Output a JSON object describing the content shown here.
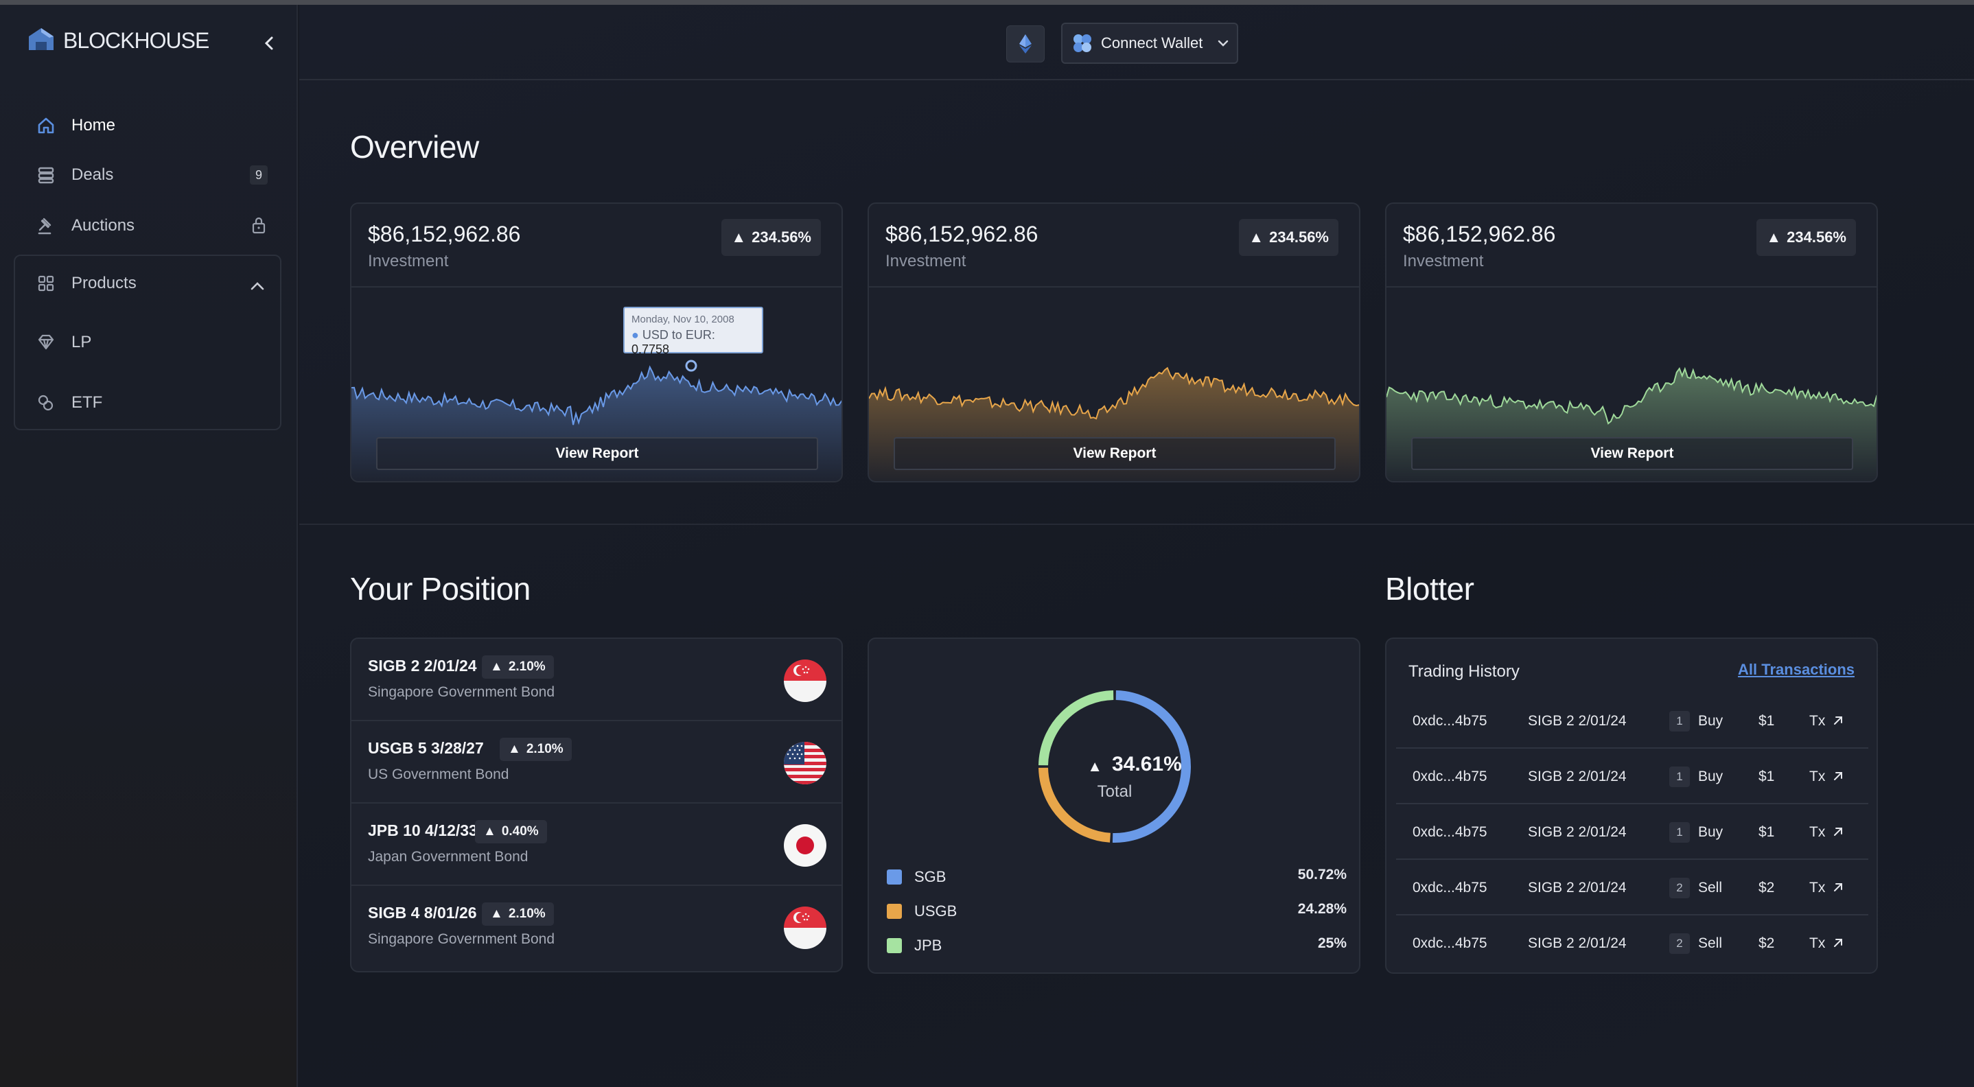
{
  "brand": {
    "name": "BLOCKHOUSE"
  },
  "sidebar": {
    "items": [
      {
        "label": "Home",
        "icon": "home-icon"
      },
      {
        "label": "Deals",
        "icon": "deals-icon",
        "badge": "9"
      },
      {
        "label": "Auctions",
        "icon": "gavel-icon",
        "locked": true
      },
      {
        "label": "Products",
        "icon": "grid-icon",
        "expanded": true
      },
      {
        "label": "LP",
        "icon": "diamond-icon"
      },
      {
        "label": "ETF",
        "icon": "coins-icon"
      }
    ]
  },
  "topbar": {
    "wallet_label": "Connect Wallet",
    "network_icon": "ethereum-icon"
  },
  "overview": {
    "title": "Overview",
    "cards": [
      {
        "amount": "$86,152,962.86",
        "label": "Investment",
        "change": "234.56%",
        "button": "View Report",
        "color": "#6a9ae8"
      },
      {
        "amount": "$86,152,962.86",
        "label": "Investment",
        "change": "234.56%",
        "button": "View Report",
        "color": "#e8a64a"
      },
      {
        "amount": "$86,152,962.86",
        "label": "Investment",
        "change": "234.56%",
        "button": "View Report",
        "color": "#9fd99a"
      }
    ],
    "tooltip": {
      "date": "Monday, Nov 10, 2008",
      "series": "USD to EUR:",
      "value": "0.7758"
    }
  },
  "position": {
    "title": "Your Position",
    "rows": [
      {
        "name": "SIGB 2 2/01/24",
        "change": "2.10%",
        "desc": "Singapore Government Bond",
        "flag": "singapore"
      },
      {
        "name": "USGB 5 3/28/27",
        "change": "2.10%",
        "desc": "US Government Bond",
        "flag": "usa"
      },
      {
        "name": "JPB 10 4/12/33",
        "change": "0.40%",
        "desc": "Japan Government Bond",
        "flag": "japan"
      },
      {
        "name": "SIGB 4 8/01/26",
        "change": "2.10%",
        "desc": "Singapore Government Bond",
        "flag": "singapore"
      }
    ],
    "donut": {
      "center_value": "34.61%",
      "center_label": "Total",
      "segments": [
        {
          "name": "SGB",
          "value": "50.72%",
          "pct": 50.72,
          "color": "#6a9ae8"
        },
        {
          "name": "USGB",
          "value": "24.28%",
          "pct": 24.28,
          "color": "#e8a64a"
        },
        {
          "name": "JPB",
          "value": "25%",
          "pct": 25,
          "color": "#a6e3a1"
        }
      ]
    }
  },
  "blotter": {
    "title": "Blotter",
    "header": "Trading History",
    "all_link": "All Transactions",
    "rows": [
      {
        "addr": "0xdc...4b75",
        "bond": "SIGB 2 2/01/24",
        "qty": "1",
        "side": "Buy",
        "price": "$1",
        "tx": "Tx"
      },
      {
        "addr": "0xdc...4b75",
        "bond": "SIGB 2 2/01/24",
        "qty": "1",
        "side": "Buy",
        "price": "$1",
        "tx": "Tx"
      },
      {
        "addr": "0xdc...4b75",
        "bond": "SIGB 2 2/01/24",
        "qty": "1",
        "side": "Buy",
        "price": "$1",
        "tx": "Tx"
      },
      {
        "addr": "0xdc...4b75",
        "bond": "SIGB 2 2/01/24",
        "qty": "2",
        "side": "Sell",
        "price": "$2",
        "tx": "Tx"
      },
      {
        "addr": "0xdc...4b75",
        "bond": "SIGB 2 2/01/24",
        "qty": "2",
        "side": "Sell",
        "price": "$2",
        "tx": "Tx"
      }
    ]
  }
}
